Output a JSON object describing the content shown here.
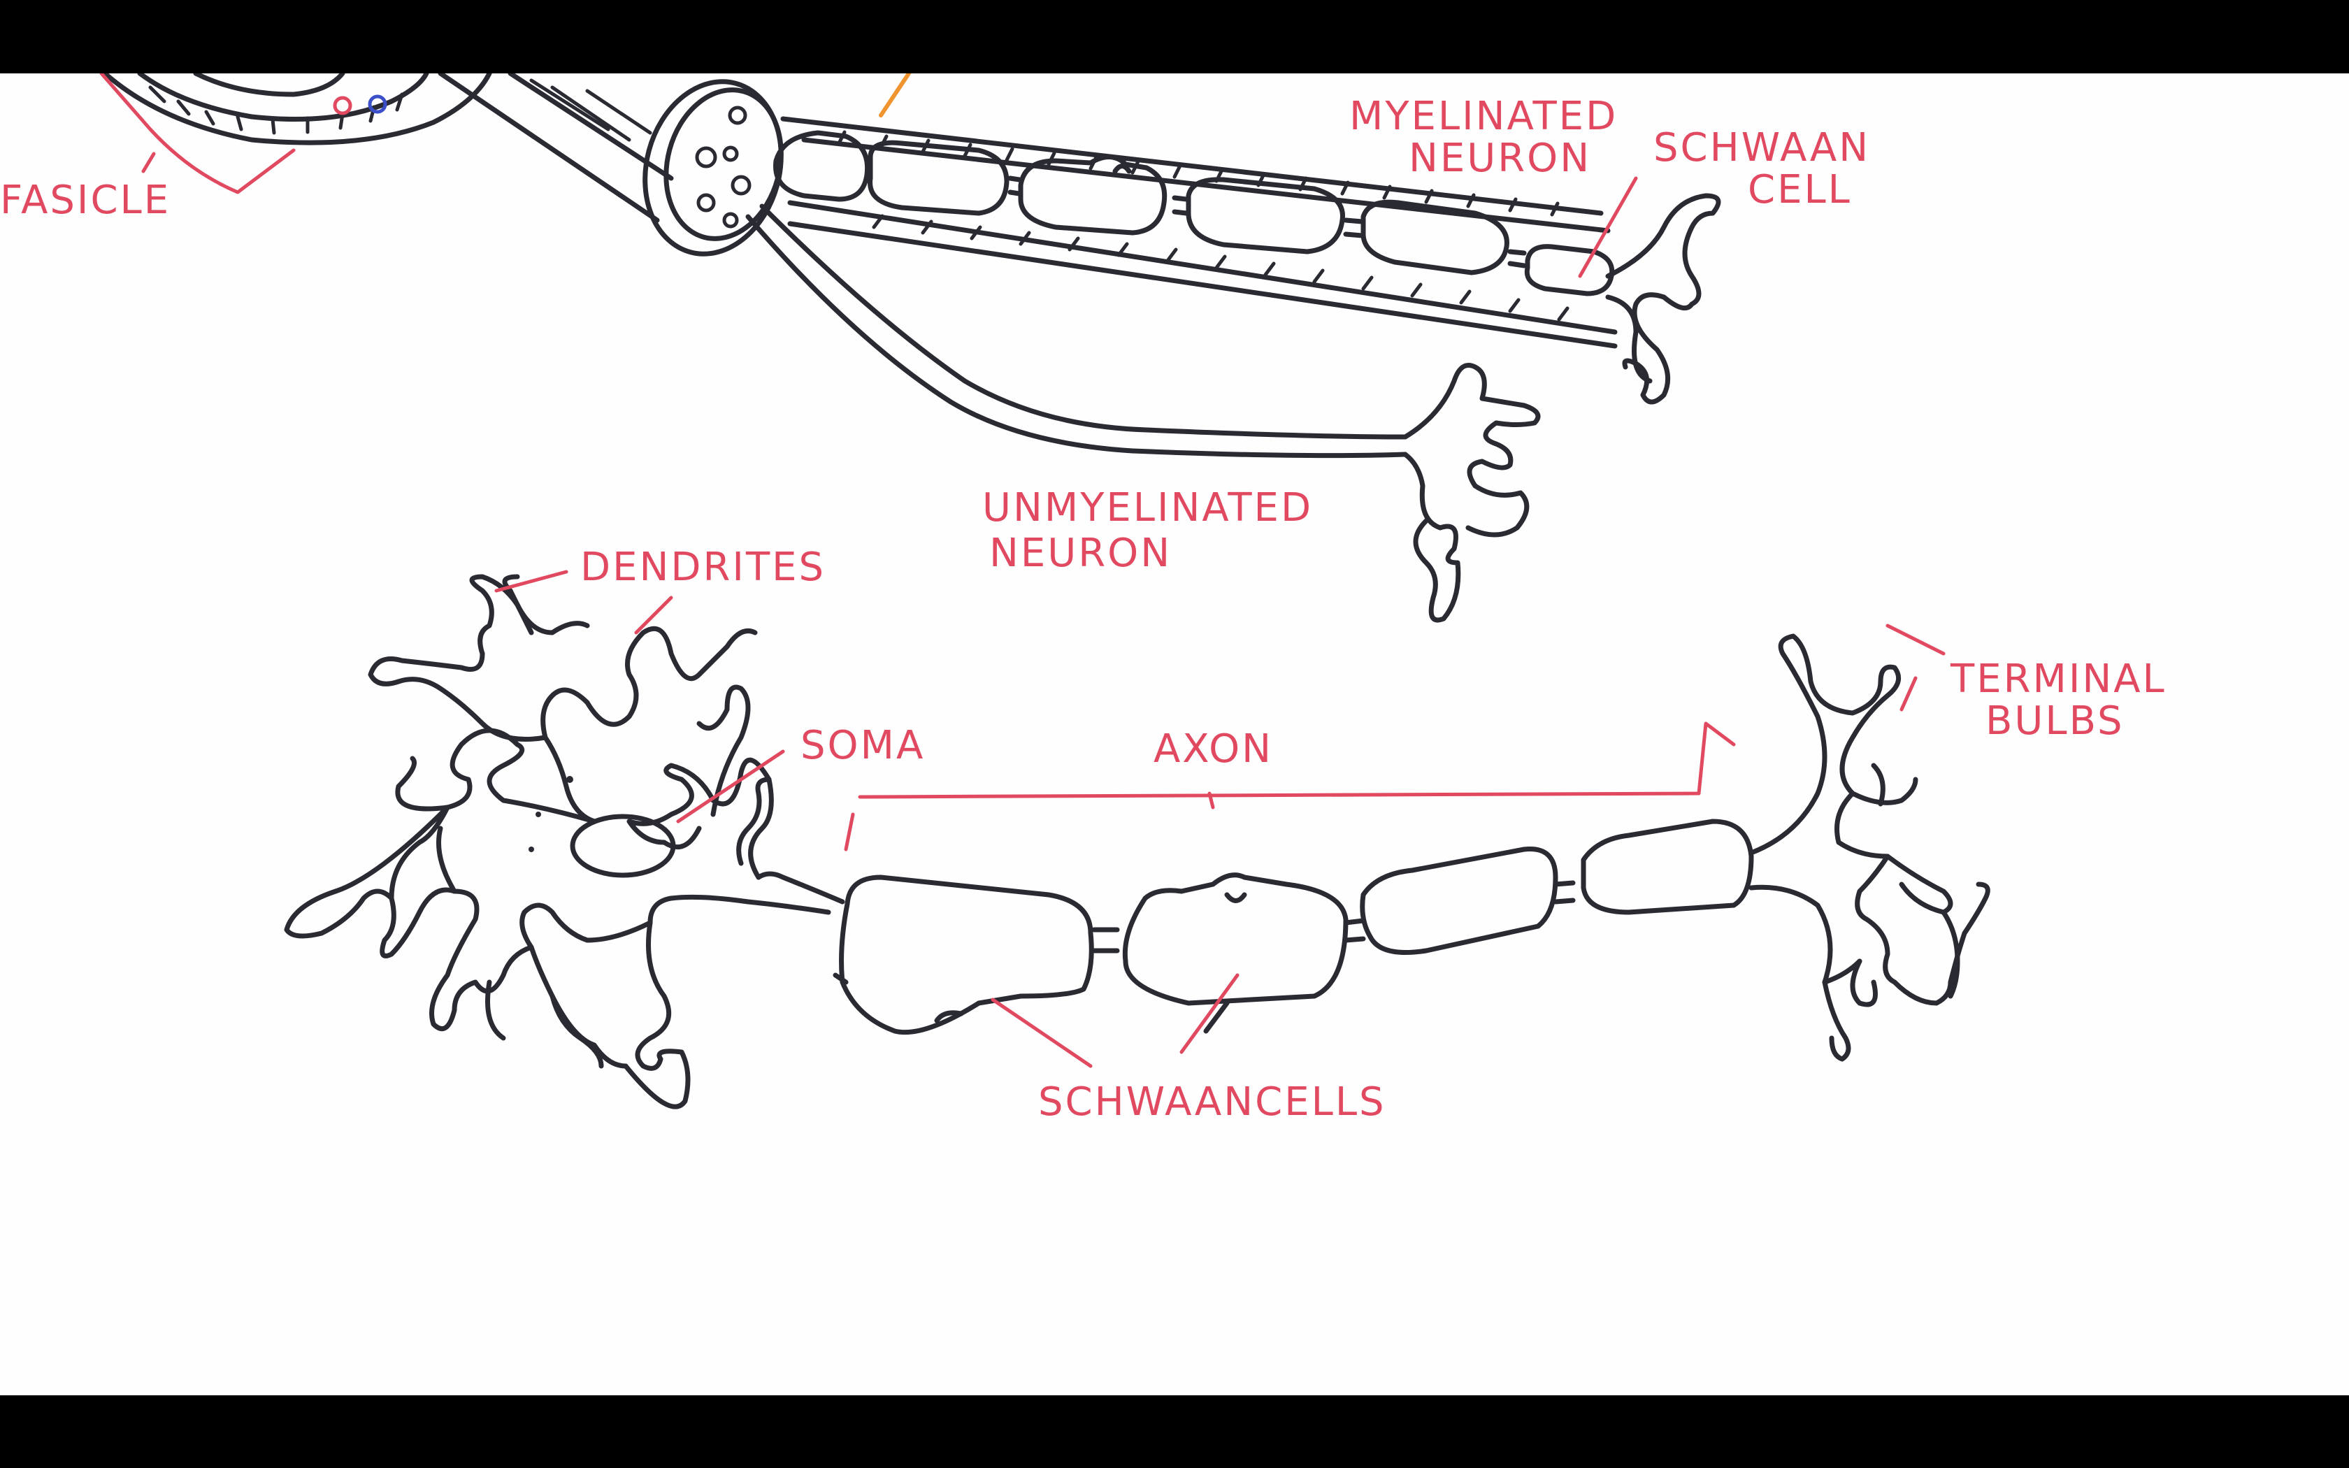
{
  "labels": {
    "fasicle": "FASICLE",
    "myelinated_1": "MYELINATED",
    "myelinated_2": "NEURON",
    "schwaan_cell_1": "SCHWAAN",
    "schwaan_cell_2": "CELL",
    "unmyelinated_1": "UNMYELINATED",
    "unmyelinated_2": "NEURON",
    "dendrites": "DENDRITES",
    "soma": "SOMA",
    "axon": "AXON",
    "terminal_1": "TERMINAL",
    "terminal_2": "BULBS",
    "schwaan_cells": "SCHWAANCELLS"
  },
  "colors": {
    "ink": "#2a2a33",
    "label": "#e0495f",
    "accent_orange": "#f09430",
    "accent_blue": "#3a4fc8",
    "board": "#fefefe",
    "letterbox": "#000000"
  }
}
